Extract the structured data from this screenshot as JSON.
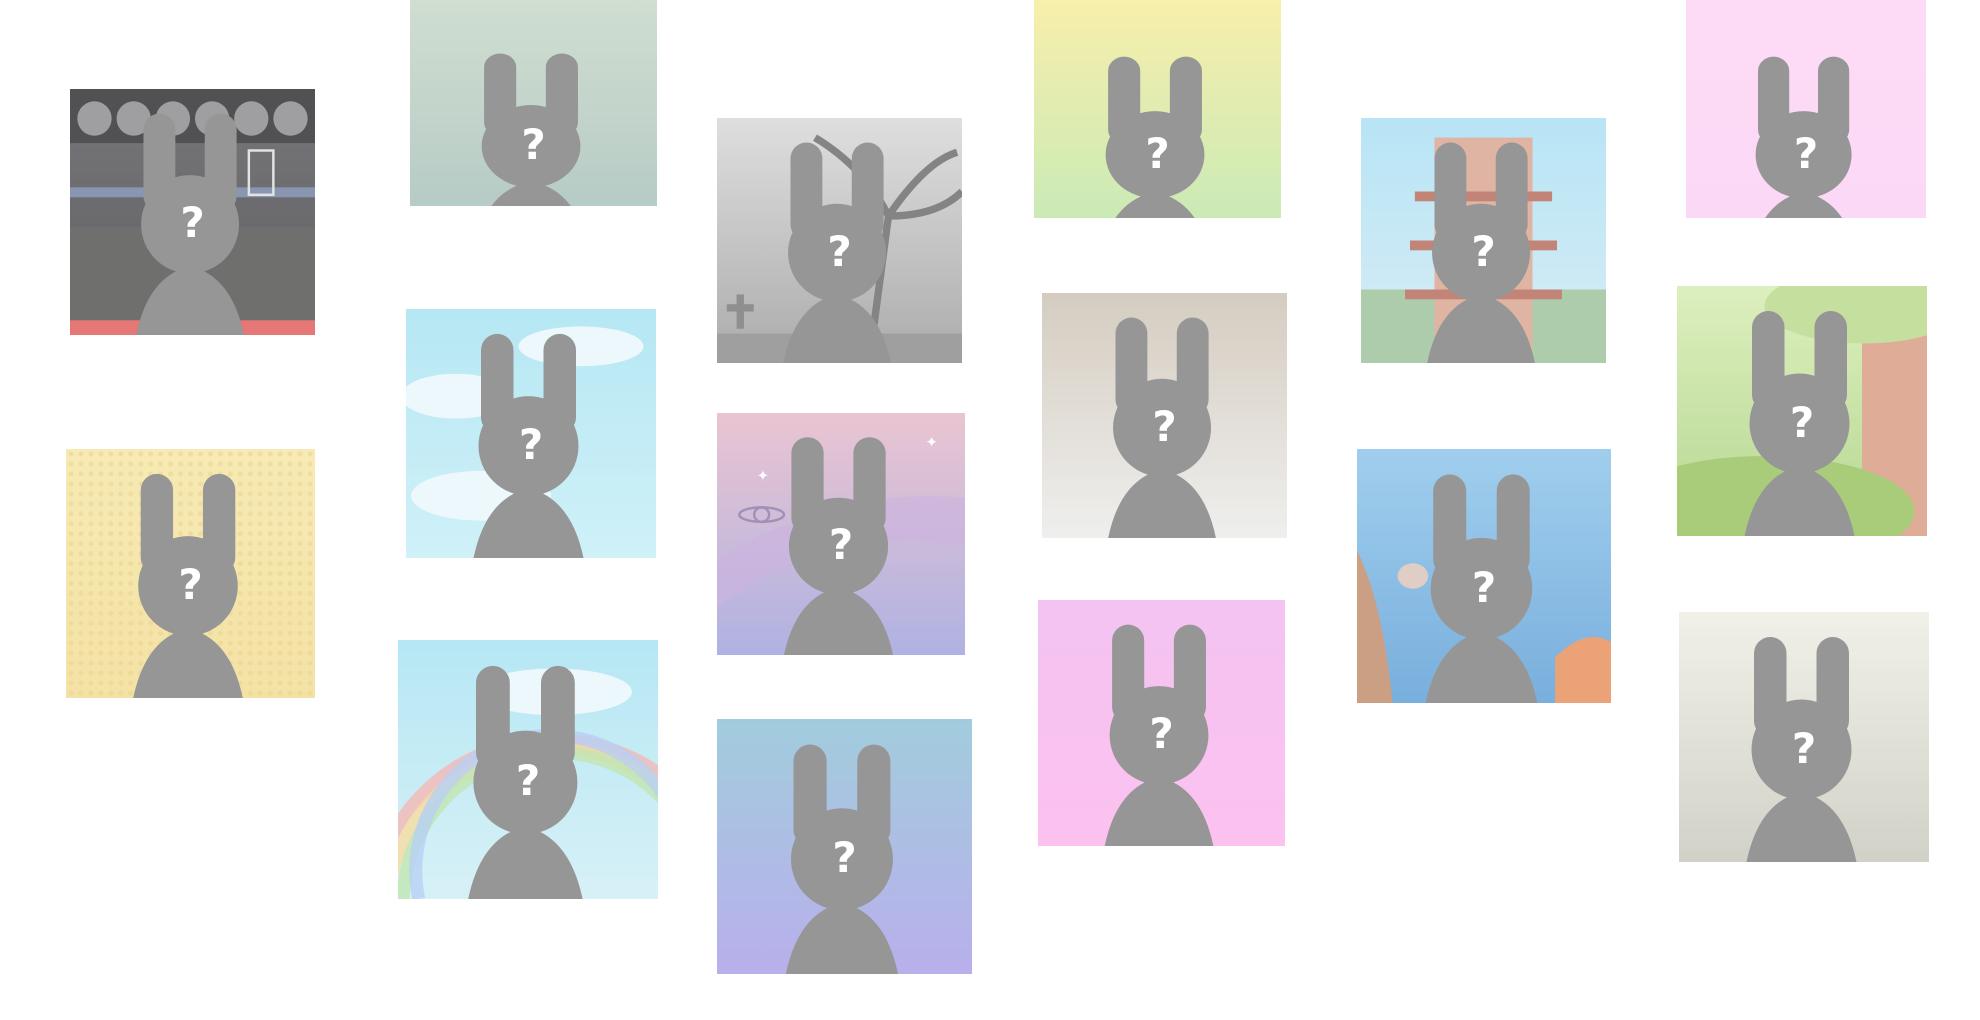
{
  "cards": [
    {
      "id": "basketball-court",
      "label": "?",
      "bg": [
        "#5a5a5e",
        "#3e3e42"
      ],
      "theme": "basketball"
    },
    {
      "id": "sage",
      "label": "?",
      "bg": [
        "#c7d7c7",
        "#a7c1ba"
      ],
      "theme": "plain"
    },
    {
      "id": "spooky-tree",
      "label": "?",
      "bg": [
        "#d8d8d8",
        "#9a9a9a"
      ],
      "theme": "spooky"
    },
    {
      "id": "yellow-green",
      "label": "?",
      "bg": [
        "#f7ec9a",
        "#bfe6a6"
      ],
      "theme": "plain"
    },
    {
      "id": "pagoda",
      "label": "?",
      "bg": [
        "#a9dff5",
        "#cfe9f2"
      ],
      "theme": "pagoda"
    },
    {
      "id": "pink",
      "label": "?",
      "bg": [
        "#fdd4f5",
        "#fcd0f6"
      ],
      "theme": "plain"
    },
    {
      "id": "sky-clouds",
      "label": "?",
      "bg": [
        "#a6e3f2",
        "#c6eef7"
      ],
      "theme": "clouds"
    },
    {
      "id": "galaxy",
      "label": "?",
      "bg": [
        "#e6b8c8",
        "#9ea2dc"
      ],
      "theme": "galaxy"
    },
    {
      "id": "taupe",
      "label": "?",
      "bg": [
        "#ccc2b3",
        "#ececea"
      ],
      "theme": "plain"
    },
    {
      "id": "forest",
      "label": "?",
      "bg": [
        "#d6ecb0",
        "#a6cf7a"
      ],
      "theme": "forest"
    },
    {
      "id": "straw",
      "label": "?",
      "bg": [
        "#f6e6a4",
        "#f2dc92"
      ],
      "theme": "straw"
    },
    {
      "id": "rainbow",
      "label": "?",
      "bg": [
        "#a6e3f2",
        "#cfeef5"
      ],
      "theme": "rainbow"
    },
    {
      "id": "ocean",
      "label": "?",
      "bg": [
        "#8cc4ea",
        "#5c9ed6"
      ],
      "theme": "ocean"
    },
    {
      "id": "bubblegum",
      "label": "?",
      "bg": [
        "#f2b6ee",
        "#fcb4ec"
      ],
      "theme": "plain"
    },
    {
      "id": "stone",
      "label": "?",
      "bg": [
        "#eeeee4",
        "#c8c8bc"
      ],
      "theme": "plain"
    },
    {
      "id": "periwinkle",
      "label": "?",
      "bg": [
        "#8ec2d6",
        "#aa9ee8"
      ],
      "theme": "plain"
    }
  ],
  "colors": {
    "silhouette": "#808080",
    "mark": "#ffffff"
  }
}
